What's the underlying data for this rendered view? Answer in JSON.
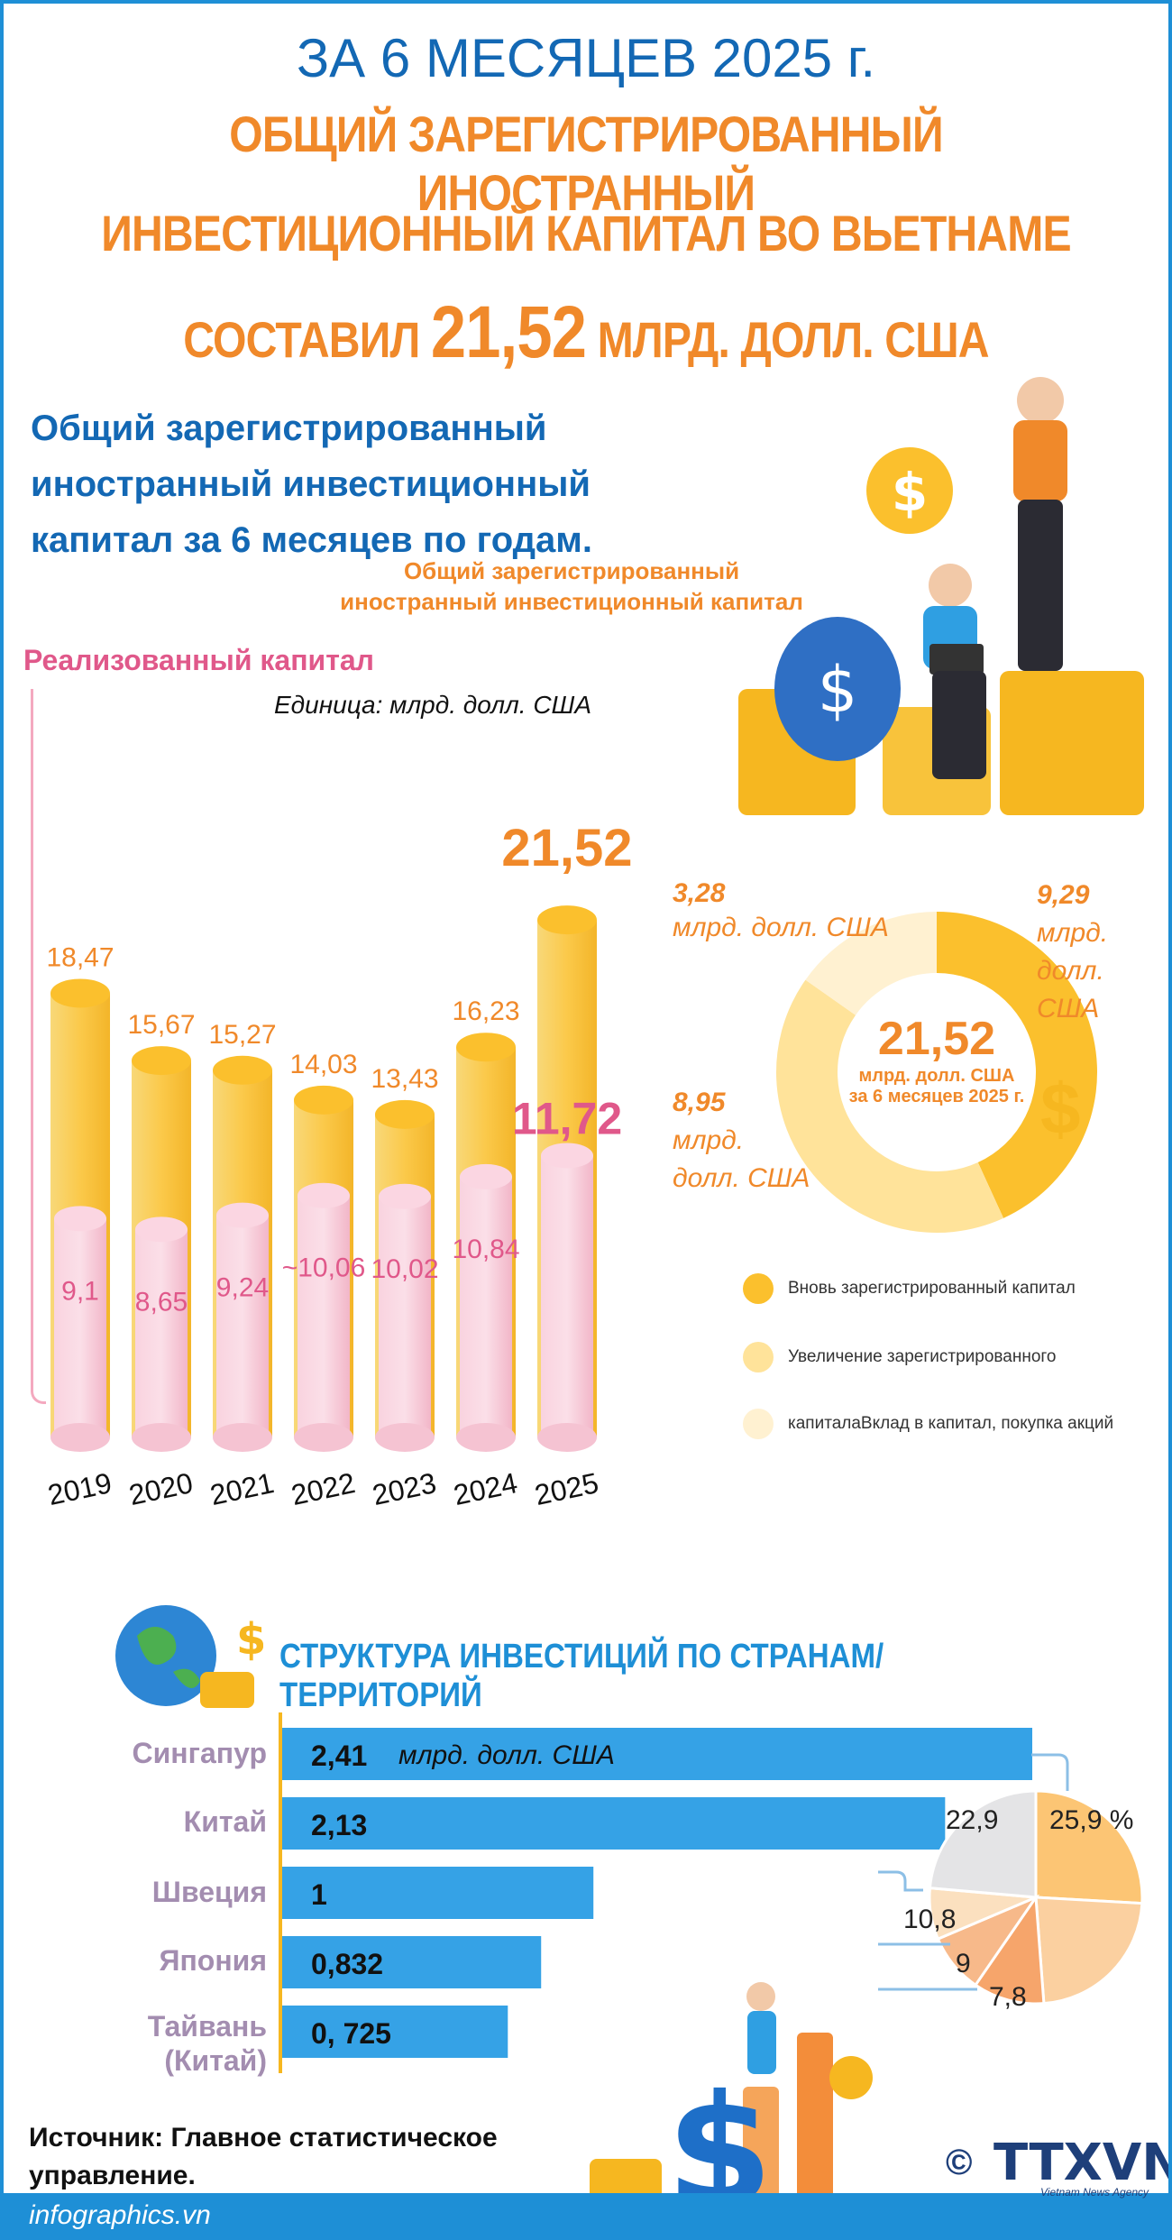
{
  "header": {
    "line1": "ЗА 6 МЕСЯЦЕВ 2025 г.",
    "line2": "ОБЩИЙ ЗАРЕГИСТРИРОВАННЫЙ ИНОСТРАННЫЙ",
    "line3": "ИНВЕСТИЦИОННЫЙ КАПИТАЛ ВО ВЬЕТНАМЕ",
    "line4_prefix": "СОСТАВИЛ",
    "line4_value": "21,52",
    "line4_suffix": "МЛРД. ДОЛЛ. США"
  },
  "section1": {
    "title_l1": "Общий зарегистрированный",
    "title_l2": "иностранный инвестиционный",
    "title_l3": "капитал за 6 месяцев по годам.",
    "legend_total_l1": "Общий зарегистрированный",
    "legend_total_l2": "иностранный инвестиционный капитал",
    "legend_realized": "Реализованный капитал",
    "unit": "Единица: млрд. долл. США"
  },
  "colors": {
    "gold": "#fbc02d",
    "gold_light": "#ffe39a",
    "pink": "#f9c6d5",
    "pink_text": "#e0588a",
    "orange": "#f0892a",
    "blue": "#1368b4",
    "bar_blue": "#35a2e6"
  },
  "chart_data": [
    {
      "type": "bar",
      "title": "Общий зарегистрированный иностранный инвестиционный капитал за 6 месяцев по годам.",
      "unit": "млрд. долл. США",
      "categories": [
        "2019",
        "2020",
        "2021",
        "2022",
        "2023",
        "2024",
        "2025"
      ],
      "series": [
        {
          "name": "Общий зарегистрированный иностранный инвестиционный капитал",
          "values": [
            18.47,
            15.67,
            15.27,
            14.03,
            13.43,
            16.23,
            21.52
          ],
          "labels": [
            "18,47",
            "15,67",
            "15,27",
            "14,03",
            "13,43",
            "16,23",
            "21,52"
          ]
        },
        {
          "name": "Реализованный капитал",
          "values": [
            9.1,
            8.65,
            9.24,
            10.06,
            10.02,
            10.84,
            11.72
          ],
          "labels": [
            "9,1",
            "8,65",
            "9,24",
            "~10,06",
            "10,02",
            "10,84",
            "11,72"
          ]
        }
      ],
      "ylim": [
        0,
        24
      ]
    },
    {
      "type": "pie",
      "center_value": "21,52",
      "center_unit": "млрд. долл. США",
      "center_period": "за 6 месяцев 2025 г.",
      "slices": [
        {
          "name": "Вновь зарегистрированный капитал",
          "value": 9.29,
          "label_value": "9,29",
          "label_unit_l1": "млрд.",
          "label_unit_l2": "долл.",
          "label_unit_l3": "США",
          "color": "#fbc02d"
        },
        {
          "name": "Увеличение зарегистрированного",
          "value": 8.95,
          "label_value": "8,95",
          "label_unit_l1": "млрд.",
          "label_unit_l2": "долл. США",
          "color": "#ffe39a"
        },
        {
          "name": "капиталаВклад в капитал, покупка акций",
          "value": 3.28,
          "label_value": "3,28",
          "label_unit_l1": "млрд. долл. США",
          "color": "#fff1d1"
        }
      ]
    },
    {
      "type": "bar",
      "orientation": "horizontal",
      "title": "СТРУКТУРА ИНВЕСТИЦИЙ ПО СТРАНАМ/ТЕРРИТОРИЙ",
      "categories": [
        "Сингапур",
        "Китай",
        "Швеция",
        "Япония",
        "Тайвань (Китай)"
      ],
      "values": [
        2.41,
        2.13,
        1,
        0.832,
        0.725
      ],
      "labels": [
        "2,41",
        "2,13",
        "1",
        "0,832",
        "0, 725"
      ],
      "unit_note": "млрд. долл. США",
      "xlim": [
        0,
        2.41
      ]
    },
    {
      "type": "pie",
      "slices": [
        {
          "label": "25,9 %",
          "value": 25.9,
          "color": "#fcc574"
        },
        {
          "label": "22,9",
          "value": 22.9,
          "color": "#fbd0a0"
        },
        {
          "label": "10,8",
          "value": 10.8,
          "color": "#f6a56b"
        },
        {
          "label": "9",
          "value": 9,
          "color": "#f7b98a"
        },
        {
          "label": "7,8",
          "value": 7.8,
          "color": "#fbe0bf"
        },
        {
          "label": "",
          "value": 23.6,
          "color": "#e4e4e6"
        }
      ]
    }
  ],
  "section2": {
    "title": "СТРУКТУРА ИНВЕСТИЦИЙ ПО СТРАНАМ/ТЕРРИТОРИЙ",
    "unit_note": "млрд. долл. США",
    "countries": [
      "Сингапур",
      "Китай",
      "Швеция",
      "Япония",
      "Тайвань",
      "(Китай)"
    ]
  },
  "footer": {
    "source_l1": "Источник: Главное статистическое",
    "source_l2": "управление.",
    "site": "infographics.vn",
    "copyright": "©",
    "logo": "TTXVN",
    "logo_sub": "Vietnam News Agency"
  },
  "icons": [
    "coin-stack-icon",
    "dollar-sign-icon",
    "globe-icon",
    "money-bag-icon"
  ]
}
